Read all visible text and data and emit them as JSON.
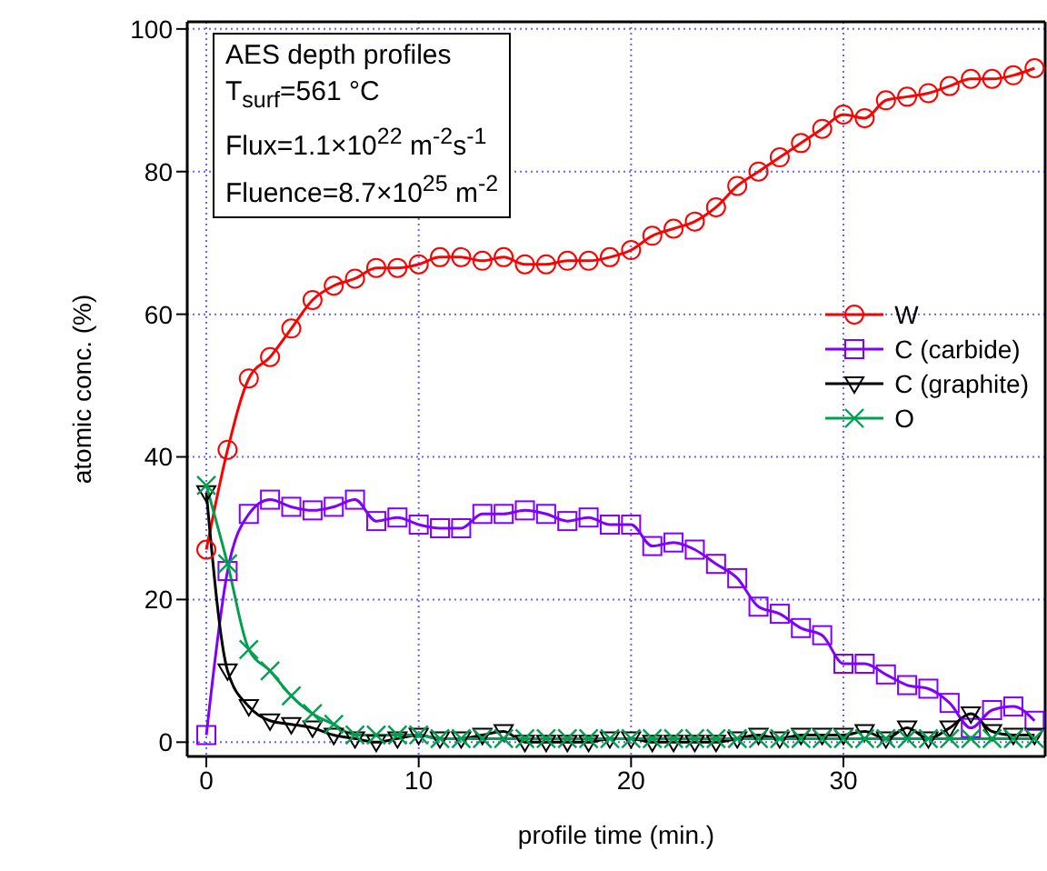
{
  "chart_data": {
    "type": "line",
    "xlabel": "profile time (min.)",
    "ylabel": "atomic conc. (%)",
    "annotations": [
      "AES depth profiles",
      "T$_{surf}$=561 °C",
      "Flux=1.1×10$^{22}$ m$^{-2}$s$^{-1}$",
      "Fluence=8.7×10$^{25}$ m$^{-2}$"
    ],
    "x": [
      0,
      1,
      2,
      3,
      4,
      5,
      6,
      7,
      8,
      9,
      10,
      11,
      12,
      13,
      14,
      15,
      16,
      17,
      18,
      19,
      20,
      21,
      22,
      23,
      24,
      25,
      26,
      27,
      28,
      29,
      30,
      31,
      32,
      33,
      34,
      35,
      36,
      37,
      38,
      39
    ],
    "series": [
      {
        "name": "W",
        "color": "#ff0000",
        "marker": "circle",
        "values": [
          27,
          41,
          51,
          54,
          58,
          62,
          64,
          65,
          66.5,
          66.5,
          67,
          68,
          68,
          67.5,
          68,
          67,
          67,
          67.5,
          67.5,
          68,
          69,
          71,
          72,
          73,
          75,
          78,
          80,
          82,
          84,
          86,
          88,
          87.5,
          90,
          90.5,
          91,
          92,
          93,
          93,
          93.5,
          94.5
        ]
      },
      {
        "name": "C (carbide)",
        "color": "#7f00ff",
        "marker": "square",
        "values": [
          1,
          24,
          32,
          34,
          33,
          32.5,
          33,
          34,
          31,
          31.5,
          30.5,
          30,
          30,
          32,
          32,
          32.5,
          32,
          31,
          31.5,
          30.5,
          30.5,
          27.5,
          28,
          27,
          25,
          23,
          19,
          18,
          16,
          15,
          11,
          11,
          9.5,
          8,
          7.5,
          5.5,
          2,
          4.5,
          5,
          3
        ]
      },
      {
        "name": "C (graphite)",
        "color": "#000000",
        "marker": "triangle",
        "values": [
          35,
          10,
          5,
          3,
          2.5,
          2,
          1,
          0.5,
          0,
          0.5,
          1,
          0.5,
          0.5,
          1,
          1.5,
          0,
          0,
          0,
          0,
          0.5,
          0.5,
          0,
          0,
          0,
          0,
          0.5,
          1,
          0.5,
          1,
          1,
          1,
          1.5,
          0.5,
          2,
          0.5,
          2,
          4,
          1.5,
          1,
          1
        ]
      },
      {
        "name": "O",
        "color": "#00a050",
        "marker": "cross",
        "values": [
          36,
          25,
          13,
          10,
          6.5,
          4,
          2.5,
          1,
          1,
          1,
          1,
          0.5,
          0.5,
          0.5,
          0.5,
          0.5,
          0.5,
          0.5,
          0.5,
          0.5,
          0.5,
          0.5,
          0.5,
          0.5,
          0.5,
          0.5,
          0.5,
          0.5,
          0.5,
          0.5,
          0.5,
          0.5,
          0.5,
          0.5,
          0.5,
          0.5,
          0.5,
          0.5,
          0.5,
          0.5
        ]
      }
    ],
    "xlim": [
      -0.9,
      39.5
    ],
    "ylim": [
      -2,
      101
    ],
    "xticks": [
      0,
      10,
      20,
      30
    ],
    "yticks": [
      0,
      20,
      40,
      60,
      80,
      100
    ],
    "grid": true,
    "legend": "right"
  }
}
